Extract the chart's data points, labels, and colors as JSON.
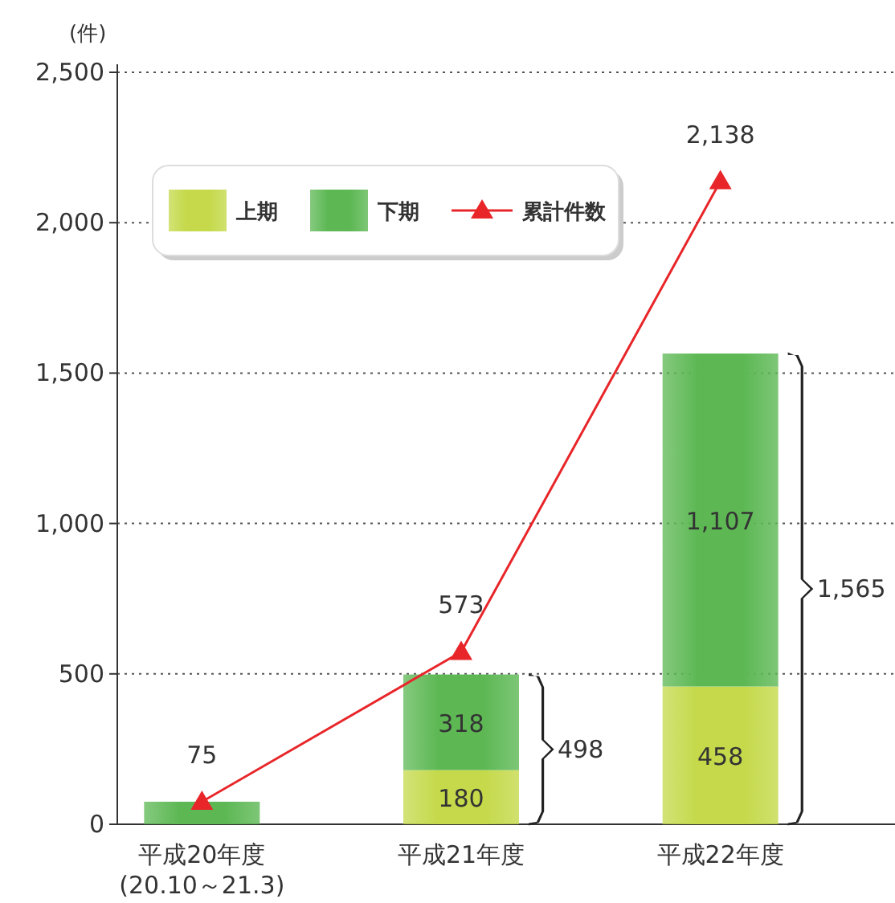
{
  "chart_data": {
    "type": "bar",
    "stacked": true,
    "ylabel": "(件)",
    "categories": [
      "平成20年度\n(20.10～21.3)",
      "平成21年度",
      "平成22年度"
    ],
    "series": [
      {
        "name": "上期",
        "color": "#c5d94a",
        "values": [
          null,
          180,
          458
        ],
        "value_labels": [
          null,
          "180",
          "458"
        ]
      },
      {
        "name": "下期",
        "color": "#5db854",
        "values": [
          75,
          318,
          1107
        ],
        "value_labels": [
          null,
          "318",
          "1,107"
        ]
      },
      {
        "name": "累計件数",
        "type": "line",
        "color": "#e8262a",
        "marker": "triangle",
        "values": [
          75,
          573,
          2138
        ],
        "value_labels": [
          "75",
          "573",
          "2,138"
        ]
      }
    ],
    "totals": [
      null,
      "498",
      "1,565"
    ],
    "ylim": [
      0,
      2500
    ],
    "yticks": [
      0,
      {
        "value": 500,
        "label": "500"
      },
      {
        "value": 1000,
        "label": "1,000"
      },
      {
        "value": 1500,
        "label": "1,500"
      },
      {
        "value": 2000,
        "label": "2,000"
      },
      {
        "value": 2500,
        "label": "2,500"
      }
    ],
    "grid": "y",
    "legend": "top left"
  }
}
